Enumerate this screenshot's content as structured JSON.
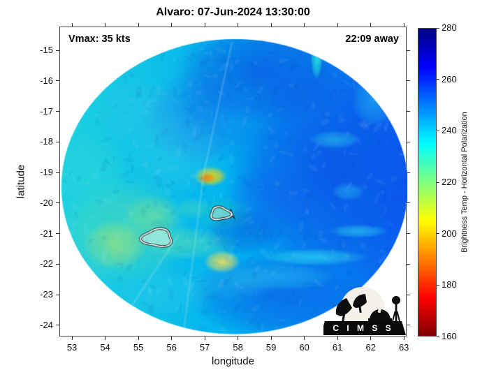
{
  "logo": {
    "text": "C I M S S"
  },
  "chart_data": {
    "type": "heatmap",
    "title": "Alvaro: 07-Jun-2024 13:30:00",
    "xlabel": "longitude",
    "ylabel": "latitude",
    "xlim": [
      52.62,
      63.08
    ],
    "ylim": [
      -24.37,
      -14.22
    ],
    "x_ticks": [
      53,
      54,
      55,
      56,
      57,
      58,
      59,
      60,
      61,
      62,
      63
    ],
    "y_ticks": [
      -15,
      -16,
      -17,
      -18,
      -19,
      -20,
      -21,
      -22,
      -23,
      -24
    ],
    "grid": false,
    "annotations": {
      "vmax": "Vmax: 35 kts",
      "time_offset": "22:09 away"
    },
    "colorbar": {
      "label": "Brightness Temp - Horizontal Polarization",
      "range": [
        160,
        280
      ],
      "ticks": [
        160,
        180,
        200,
        220,
        240,
        260,
        280
      ],
      "colormap": "jet-reversed",
      "gradient_top_to_bottom": [
        {
          "v": 280,
          "c": "#000080"
        },
        {
          "v": 265,
          "c": "#0000ff"
        },
        {
          "v": 235,
          "c": "#00ffff"
        },
        {
          "v": 205,
          "c": "#ffff00"
        },
        {
          "v": 175,
          "c": "#ff0000"
        },
        {
          "v": 160,
          "c": "#800000"
        }
      ]
    },
    "swath": {
      "center": [
        57.88,
        -19.44
      ],
      "rx_deg": 5.22,
      "ry_deg": 4.83,
      "base_gradient": [
        "#1ed2e0",
        "#00b2f0",
        "#0a5cf0"
      ],
      "blobs": [
        {
          "lon": 60.8,
          "lat": -18.8,
          "rx": 3.2,
          "ry": 3.6,
          "color": "#0b50e8",
          "alpha": 0.8,
          "K": 258
        },
        {
          "lon": 58.6,
          "lat": -15.7,
          "rx": 2.6,
          "ry": 1.7,
          "color": "#0c4ce0",
          "alpha": 0.7,
          "K": 258
        },
        {
          "lon": 59.0,
          "lat": -23.0,
          "rx": 2.6,
          "ry": 1.4,
          "color": "#0e55e6",
          "alpha": 0.6,
          "K": 256
        },
        {
          "lon": 56.9,
          "lat": -17.2,
          "rx": 1.8,
          "ry": 1.6,
          "color": "#1668ec",
          "alpha": 0.55,
          "K": 252
        },
        {
          "lon": 54.6,
          "lat": -20.9,
          "rx": 2.0,
          "ry": 1.8,
          "color": "#6ee89e",
          "alpha": 0.45,
          "K": 222
        },
        {
          "lon": 54.25,
          "lat": -21.35,
          "rx": 1.0,
          "ry": 0.8,
          "color": "#c6e85a",
          "alpha": 0.5,
          "K": 212
        },
        {
          "lon": 55.4,
          "lat": -20.4,
          "rx": 0.9,
          "ry": 0.7,
          "color": "#9ae87a",
          "alpha": 0.4,
          "K": 216
        },
        {
          "lon": 53.6,
          "lat": -19.0,
          "rx": 1.1,
          "ry": 1.3,
          "color": "#2fd8d8",
          "alpha": 0.5,
          "K": 234
        },
        {
          "lon": 56.5,
          "lat": -21.3,
          "rx": 1.5,
          "ry": 0.55,
          "color": "#62e0a8",
          "alpha": 0.5,
          "K": 224
        },
        {
          "lon": 57.5,
          "lat": -21.9,
          "rx": 0.55,
          "ry": 0.38,
          "color": "#ffe34d",
          "alpha": 0.85,
          "K": 204
        },
        {
          "lon": 57.15,
          "lat": -19.1,
          "rx": 0.5,
          "ry": 0.33,
          "color": "#ffd900",
          "alpha": 0.95,
          "K": 200
        },
        {
          "lon": 57.05,
          "lat": -19.15,
          "rx": 0.25,
          "ry": 0.17,
          "color": "#ff7f00",
          "alpha": 0.95,
          "K": 190
        },
        {
          "lon": 57.55,
          "lat": -20.35,
          "rx": 0.9,
          "ry": 0.6,
          "color": "#25c8a8",
          "alpha": 0.4,
          "K": 228
        },
        {
          "lon": 58.15,
          "lat": -20.9,
          "rx": 1.2,
          "ry": 0.8,
          "color": "#0a46d8",
          "alpha": 0.45,
          "K": 260
        },
        {
          "lon": 60.3,
          "lat": -21.75,
          "rx": 1.6,
          "ry": 0.28,
          "color": "#37f0f0",
          "alpha": 0.55,
          "K": 232
        },
        {
          "lon": 61.6,
          "lat": -20.9,
          "rx": 0.9,
          "ry": 0.22,
          "color": "#37f0f0",
          "alpha": 0.5,
          "K": 232
        },
        {
          "lon": 60.9,
          "lat": -17.9,
          "rx": 0.8,
          "ry": 0.3,
          "color": "#35e8f0",
          "alpha": 0.45,
          "K": 234
        },
        {
          "lon": 62.1,
          "lat": -16.6,
          "rx": 0.7,
          "ry": 0.9,
          "color": "#2ed4f0",
          "alpha": 0.45,
          "K": 238
        },
        {
          "lon": 60.35,
          "lat": -15.2,
          "rx": 0.18,
          "ry": 0.75,
          "color": "#21f0dc",
          "alpha": 0.85,
          "K": 230
        },
        {
          "lon": 59.2,
          "lat": -22.4,
          "rx": 1.7,
          "ry": 0.45,
          "color": "#2fcaf0",
          "alpha": 0.45,
          "K": 240
        },
        {
          "lon": 55.8,
          "lat": -22.9,
          "rx": 1.6,
          "ry": 0.8,
          "color": "#2fc8ea",
          "alpha": 0.45,
          "K": 240
        },
        {
          "lon": 56.2,
          "lat": -18.3,
          "rx": 1.5,
          "ry": 1.4,
          "color": "#38cce8",
          "alpha": 0.4,
          "K": 240
        },
        {
          "lon": 55.1,
          "lat": -17.0,
          "rx": 1.4,
          "ry": 1.2,
          "color": "#34c4e6",
          "alpha": 0.4,
          "K": 241
        },
        {
          "lon": 58.9,
          "lat": -19.8,
          "rx": 1.4,
          "ry": 1.1,
          "color": "#1260ec",
          "alpha": 0.4,
          "K": 254
        },
        {
          "lon": 57.9,
          "lat": -22.6,
          "rx": 1.2,
          "ry": 0.6,
          "color": "#28b4ea",
          "alpha": 0.4,
          "K": 244
        },
        {
          "lon": 53.4,
          "lat": -21.8,
          "rx": 0.9,
          "ry": 1.0,
          "color": "#35d0d4",
          "alpha": 0.45,
          "K": 236
        },
        {
          "lon": 56.6,
          "lat": -20.15,
          "rx": 0.5,
          "ry": 0.35,
          "color": "#55dcb0",
          "alpha": 0.45,
          "K": 226
        },
        {
          "lon": 61.3,
          "lat": -19.6,
          "rx": 0.5,
          "ry": 0.3,
          "color": "#35e0f0",
          "alpha": 0.4,
          "K": 236
        }
      ],
      "contours": [
        {
          "lon": 57.45,
          "lat": -20.32,
          "rx": 0.3,
          "ry": 0.2,
          "fill": "#aef0d2"
        },
        {
          "lon": 55.55,
          "lat": -21.12,
          "rx": 0.45,
          "ry": 0.28,
          "fill": "#ddf6ea"
        }
      ],
      "seams": [
        {
          "points": [
            [
              57.8,
              -14.7
            ],
            [
              56.95,
              -19.0
            ],
            [
              56.35,
              -24.1
            ]
          ]
        },
        {
          "points": [
            [
              54.5,
              -23.8
            ],
            [
              56.2,
              -21.0
            ]
          ]
        }
      ]
    }
  }
}
